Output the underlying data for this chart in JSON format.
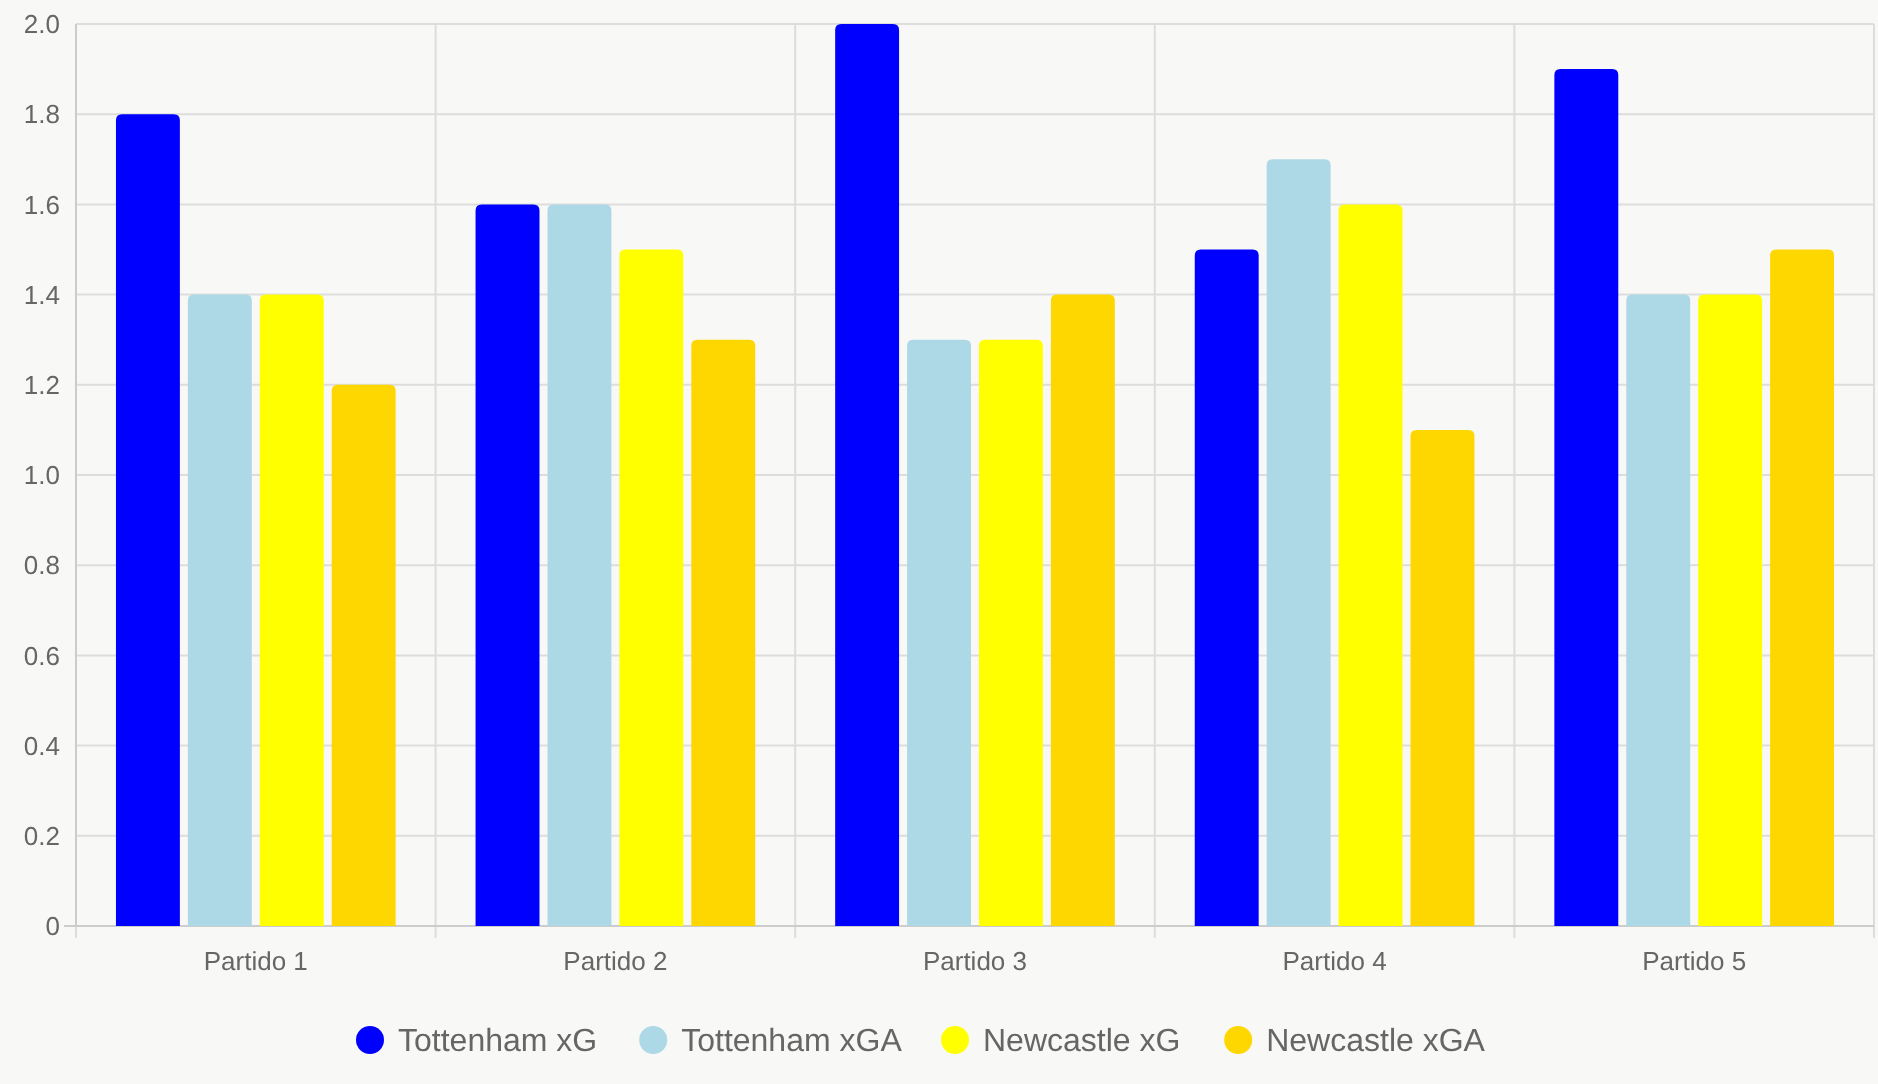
{
  "chart_data": {
    "type": "bar",
    "categories": [
      "Partido 1",
      "Partido 2",
      "Partido 3",
      "Partido 4",
      "Partido 5"
    ],
    "series": [
      {
        "name": "Tottenham xG",
        "color": "#0000ff",
        "values": [
          1.8,
          1.6,
          2.0,
          1.5,
          1.9
        ]
      },
      {
        "name": "Tottenham xGA",
        "color": "#add8e6",
        "values": [
          1.4,
          1.6,
          1.3,
          1.7,
          1.4
        ]
      },
      {
        "name": "Newcastle xG",
        "color": "#ffff00",
        "values": [
          1.4,
          1.5,
          1.3,
          1.6,
          1.4
        ]
      },
      {
        "name": "Newcastle xGA",
        "color": "#ffd700",
        "values": [
          1.2,
          1.3,
          1.4,
          1.1,
          1.5
        ]
      }
    ],
    "ylim": [
      0,
      2
    ],
    "yticks": [
      0,
      0.2,
      0.4,
      0.6,
      0.8,
      {
        "value": 1,
        "label": "1.0"
      },
      1.2,
      1.4,
      1.6,
      1.8,
      {
        "value": 2,
        "label": "2.0"
      }
    ],
    "grid": true,
    "legend": "bottom"
  }
}
